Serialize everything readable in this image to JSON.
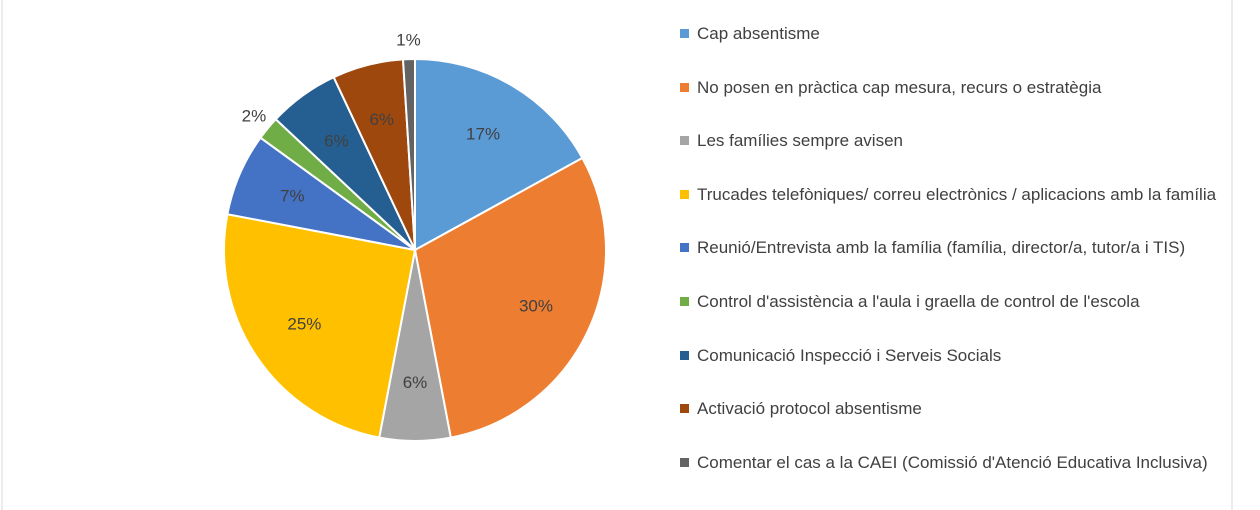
{
  "chart_data": {
    "type": "pie",
    "categories": [
      "Cap absentisme",
      "No posen en pràctica cap mesura, recurs o estratègia",
      "Les famílies sempre avisen",
      "Trucades telefòniques/ correu electrònics / aplicacions amb la família",
      "Reunió/Entrevista amb la família (família, director/a, tutor/a i TIS)",
      "Control d'assistència a l'aula i graella de control de l'escola",
      "Comunicació Inspecció i Serveis Socials",
      "Activació protocol absentisme",
      "Comentar el cas a la CAEI (Comissió d'Atenció Educativa Inclusiva)"
    ],
    "values": [
      17,
      30,
      6,
      25,
      7,
      2,
      6,
      6,
      1
    ],
    "value_labels": [
      "17%",
      "30%",
      "6%",
      "25%",
      "7%",
      "2%",
      "6%",
      "6%",
      "1%"
    ],
    "colors": [
      "#5b9bd5",
      "#ed7d31",
      "#a5a5a5",
      "#ffc000",
      "#4472c4",
      "#70ad47",
      "#255e91",
      "#9e480e",
      "#636363"
    ],
    "legend": "right"
  }
}
